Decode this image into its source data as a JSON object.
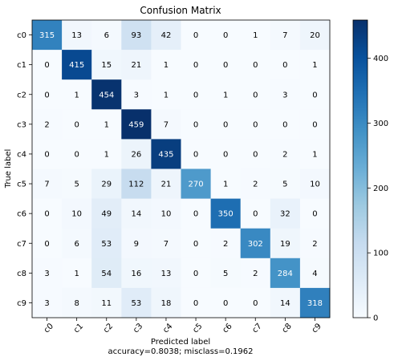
{
  "chart_data": {
    "type": "heatmap",
    "title": "Confusion Matrix",
    "xlabel": "Predicted label",
    "ylabel": "True label",
    "footer": "accuracy=0.8038; misclass=0.1962",
    "x_categories": [
      "c0",
      "c1",
      "c2",
      "c3",
      "c4",
      "c5",
      "c6",
      "c7",
      "c8",
      "c9"
    ],
    "y_categories": [
      "c0",
      "c1",
      "c2",
      "c3",
      "c4",
      "c5",
      "c6",
      "c7",
      "c8",
      "c9"
    ],
    "colormap": "Blues",
    "vmin": 0,
    "vmax": 459,
    "colorbar_ticks": [
      0,
      100,
      200,
      300,
      400
    ],
    "values": [
      [
        315,
        13,
        6,
        93,
        42,
        0,
        0,
        1,
        7,
        20
      ],
      [
        0,
        415,
        15,
        21,
        1,
        0,
        0,
        0,
        0,
        1
      ],
      [
        0,
        1,
        454,
        3,
        1,
        0,
        1,
        0,
        3,
        0
      ],
      [
        2,
        0,
        1,
        459,
        7,
        0,
        0,
        0,
        0,
        0
      ],
      [
        0,
        0,
        1,
        26,
        435,
        0,
        0,
        0,
        2,
        1
      ],
      [
        7,
        5,
        29,
        112,
        21,
        270,
        1,
        2,
        5,
        10
      ],
      [
        0,
        10,
        49,
        14,
        10,
        0,
        350,
        0,
        32,
        0
      ],
      [
        0,
        6,
        53,
        9,
        7,
        0,
        2,
        302,
        19,
        2
      ],
      [
        3,
        1,
        54,
        16,
        13,
        0,
        5,
        2,
        284,
        4
      ],
      [
        3,
        8,
        11,
        53,
        18,
        0,
        0,
        0,
        14,
        318
      ]
    ]
  }
}
